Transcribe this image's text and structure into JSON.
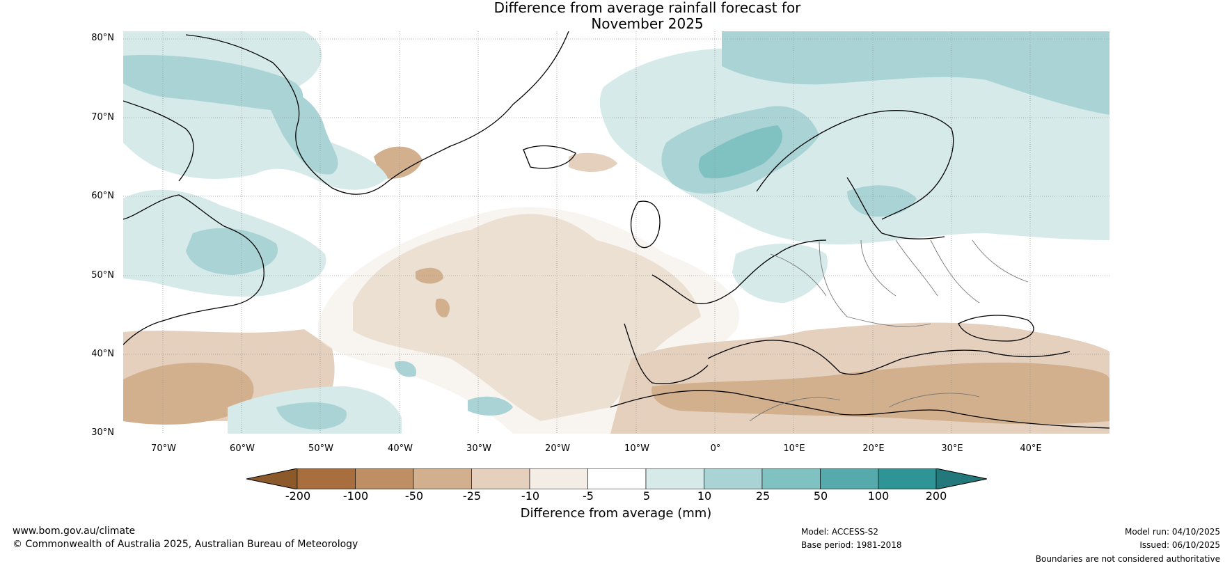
{
  "title": {
    "line1": "Difference from average rainfall forecast for",
    "line2": "November 2025"
  },
  "map": {
    "lat_labels": [
      "80°N",
      "70°N",
      "60°N",
      "50°N",
      "40°N",
      "30°N"
    ],
    "lon_labels": [
      "70°W",
      "60°W",
      "50°W",
      "40°W",
      "30°W",
      "20°W",
      "10°W",
      "0°",
      "10°E",
      "20°E",
      "30°E",
      "40°E"
    ]
  },
  "colorbar": {
    "colors": [
      "#8c5a2a",
      "#a86e3d",
      "#be8e64",
      "#d2b08e",
      "#e4d0bd",
      "#f3ede6",
      "#ffffff",
      "#d6eaea",
      "#a9d3d4",
      "#80c1c1",
      "#56aaab",
      "#2e9495",
      "#22787a"
    ],
    "ticks": [
      "-200",
      "-100",
      "-50",
      "-25",
      "-10",
      "-5",
      "5",
      "10",
      "25",
      "50",
      "100",
      "200"
    ],
    "label": "Difference from average (mm)"
  },
  "footer": {
    "website": "www.bom.gov.au/climate",
    "copyright": "© Commonwealth of Australia 2025, Australian Bureau of Meteorology",
    "model": "Model: ACCESS-S2",
    "base_period": "Base period: 1981-2018",
    "model_run": "Model run: 04/10/2025",
    "issued": "Issued: 06/10/2025",
    "disclaimer": "Boundaries are not considered authoritative"
  }
}
